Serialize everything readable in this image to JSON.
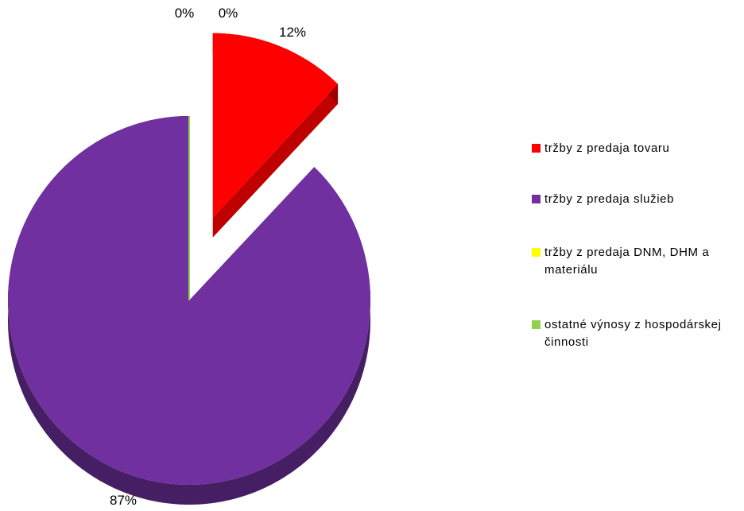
{
  "chart_data": {
    "type": "pie",
    "categories": [
      "tržby z predaja tovaru",
      "tržby z predaja služieb",
      "tržby z predaja DNM, DHM a materiálu",
      "ostatné výnosy z hospodárskej činnosti"
    ],
    "values": [
      12,
      87,
      0,
      0
    ],
    "value_labels": [
      "12%",
      "87%",
      "0%",
      "0%"
    ],
    "colors": [
      "#ff0000",
      "#7030a0",
      "#ffff00",
      "#92d050"
    ],
    "legend": "right"
  }
}
